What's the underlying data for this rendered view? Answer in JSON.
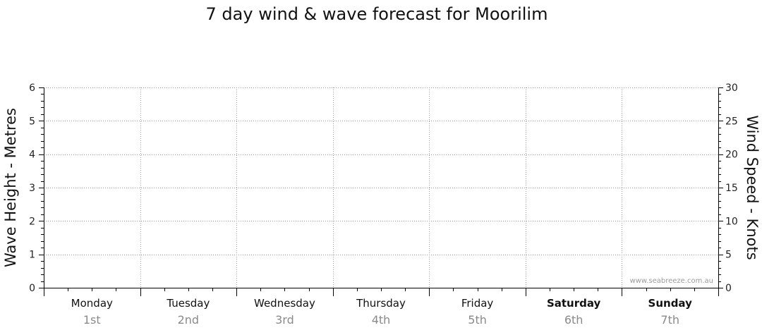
{
  "chart_data": {
    "type": "line",
    "title": "7 day wind & wave forecast for Moorilim",
    "ylabel_left": "Wave Height - Metres",
    "ylabel_right": "Wind Speed - Knots",
    "ylim_left": [
      0,
      6
    ],
    "ylim_right": [
      0,
      30
    ],
    "yticks_left": [
      0,
      1,
      2,
      3,
      4,
      5,
      6
    ],
    "yticks_right": [
      0,
      5,
      10,
      15,
      20,
      25,
      30
    ],
    "grid": true,
    "days": [
      {
        "day": "Monday",
        "date": "1st",
        "weekend": false
      },
      {
        "day": "Tuesday",
        "date": "2nd",
        "weekend": false
      },
      {
        "day": "Wednesday",
        "date": "3rd",
        "weekend": false
      },
      {
        "day": "Thursday",
        "date": "4th",
        "weekend": false
      },
      {
        "day": "Friday",
        "date": "5th",
        "weekend": false
      },
      {
        "day": "Saturday",
        "date": "6th",
        "weekend": true
      },
      {
        "day": "Sunday",
        "date": "7th",
        "weekend": true
      }
    ],
    "series": [],
    "credit": "www.seabreeze.com.au"
  }
}
